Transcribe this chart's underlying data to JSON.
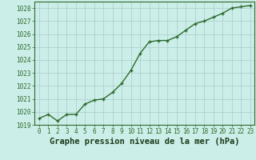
{
  "x": [
    0,
    1,
    2,
    3,
    4,
    5,
    6,
    7,
    8,
    9,
    10,
    11,
    12,
    13,
    14,
    15,
    16,
    17,
    18,
    19,
    20,
    21,
    22,
    23
  ],
  "y": [
    1019.5,
    1019.8,
    1019.3,
    1019.8,
    1019.8,
    1020.6,
    1020.9,
    1021.0,
    1021.5,
    1022.2,
    1023.2,
    1024.5,
    1025.4,
    1025.5,
    1025.5,
    1025.8,
    1026.3,
    1026.8,
    1027.0,
    1027.3,
    1027.6,
    1028.0,
    1028.1,
    1028.2
  ],
  "line_color": "#2d6a2d",
  "marker": "+",
  "bg_color": "#cceee8",
  "grid_color": "#aacccc",
  "xlabel": "Graphe pression niveau de la mer (hPa)",
  "xlabel_fontsize": 7.5,
  "ylim": [
    1019,
    1028.5
  ],
  "xlim": [
    -0.5,
    23.5
  ],
  "yticks": [
    1019,
    1020,
    1021,
    1022,
    1023,
    1024,
    1025,
    1026,
    1027,
    1028
  ],
  "xticks": [
    0,
    1,
    2,
    3,
    4,
    5,
    6,
    7,
    8,
    9,
    10,
    11,
    12,
    13,
    14,
    15,
    16,
    17,
    18,
    19,
    20,
    21,
    22,
    23
  ],
  "tick_fontsize": 5.5,
  "line_width": 1.0,
  "marker_size": 3.5
}
